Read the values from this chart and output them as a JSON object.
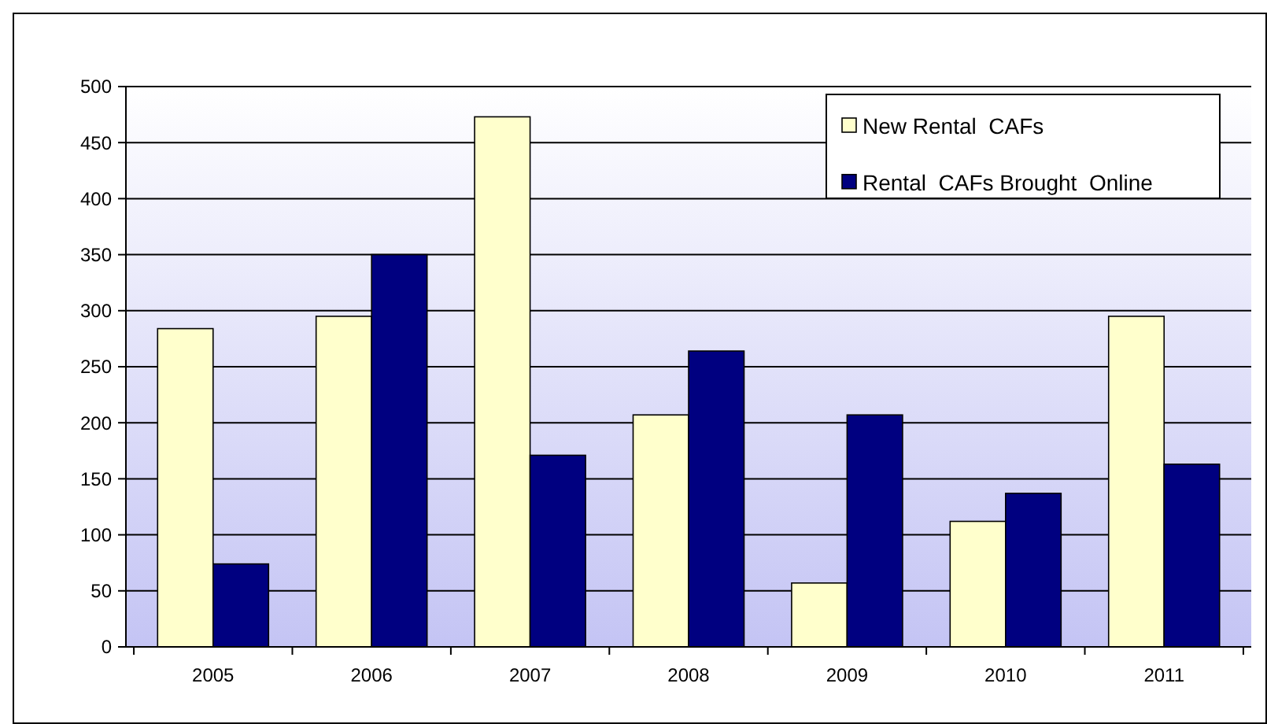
{
  "chart_data": {
    "type": "bar",
    "categories": [
      "2005",
      "2006",
      "2007",
      "2008",
      "2009",
      "2010",
      "2011"
    ],
    "series": [
      {
        "name": "New Rental  CAFs",
        "color": "#ffffcc",
        "values": [
          284,
          295,
          473,
          207,
          57,
          112,
          295
        ]
      },
      {
        "name": "Rental  CAFs Brought  Online",
        "color": "#000080",
        "values": [
          74,
          350,
          171,
          264,
          207,
          137,
          163
        ]
      }
    ],
    "ylim": [
      0,
      500
    ],
    "yticks": [
      0,
      50,
      100,
      150,
      200,
      250,
      300,
      350,
      400,
      450,
      500
    ],
    "grid": "y",
    "legend": "top right"
  }
}
